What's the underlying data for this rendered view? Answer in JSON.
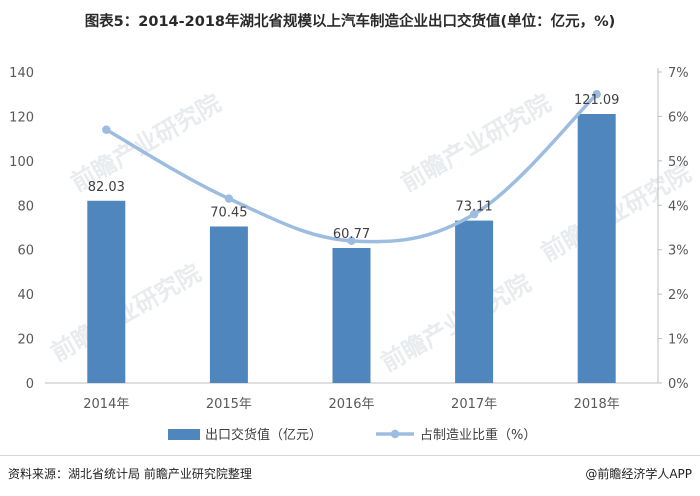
{
  "title": "图表5：2014-2018年湖北省规模以上汽车制造企业出口交货值(单位：亿元，%)",
  "footer": {
    "source": "资料来源：湖北省统计局 前瞻产业研究院整理",
    "credit": "@前瞻经济学人APP"
  },
  "watermark": "前瞻产业研究院",
  "colors": {
    "bar": "#4f86bd",
    "line": "#9dbde0",
    "axis": "#bfbfbf",
    "tick_text": "#595959"
  },
  "chart_data": {
    "type": "bar",
    "categories": [
      "2014年",
      "2015年",
      "2016年",
      "2017年",
      "2018年"
    ],
    "series": [
      {
        "name": "出口交货值（亿元）",
        "type": "bar",
        "axis": "left",
        "values": [
          82.03,
          70.45,
          60.77,
          73.11,
          121.09
        ],
        "labels": [
          "82.03",
          "70.45",
          "60.77",
          "73.11",
          "121.09"
        ]
      },
      {
        "name": "占制造业比重（%）",
        "type": "line",
        "axis": "right",
        "values": [
          5.7,
          4.15,
          3.2,
          3.8,
          6.5
        ]
      }
    ],
    "y_left": {
      "ylim": [
        0,
        140
      ],
      "ticks": [
        "0",
        "20",
        "40",
        "60",
        "80",
        "100",
        "120",
        "140"
      ]
    },
    "y_right": {
      "ylim": [
        0,
        7
      ],
      "ticks": [
        "0%",
        "1%",
        "2%",
        "3%",
        "4%",
        "5%",
        "6%",
        "7%"
      ]
    },
    "grid": false,
    "legend_position": "bottom"
  }
}
